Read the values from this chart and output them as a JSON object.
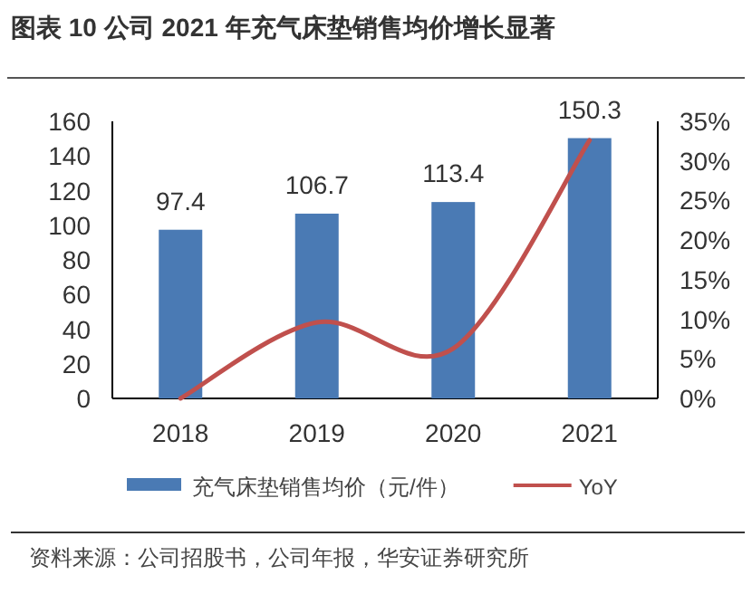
{
  "chart_data": {
    "type": "bar",
    "title": "图表 10 公司 2021 年充气床垫销售均价增长显著",
    "categories": [
      "2018",
      "2019",
      "2020",
      "2021"
    ],
    "series": [
      {
        "name": "充气床垫销售均价（元/件）",
        "color": "#4a7ab4",
        "values": [
          97.4,
          106.7,
          113.4,
          150.3
        ]
      },
      {
        "name": "YoY",
        "type": "line",
        "axis": "y2",
        "color": "#c0504d",
        "values": [
          0,
          9.6,
          6.3,
          32.6
        ]
      }
    ],
    "value_labels": [
      "97.4",
      "106.7",
      "113.4",
      "150.3"
    ],
    "ylim": [
      0,
      160
    ],
    "yticks": [
      0,
      20,
      40,
      60,
      80,
      100,
      120,
      140,
      160
    ],
    "y2lim": [
      0,
      35
    ],
    "y2ticks": [
      {
        "value": 0,
        "label": "0%"
      },
      {
        "value": 5,
        "label": "5%"
      },
      {
        "value": 10,
        "label": "10%"
      },
      {
        "value": 15,
        "label": "15%"
      },
      {
        "value": 20,
        "label": "20%"
      },
      {
        "value": 25,
        "label": "25%"
      },
      {
        "value": 30,
        "label": "30%"
      },
      {
        "value": 35,
        "label": "35%"
      }
    ],
    "legend": "bottom",
    "grid": false,
    "marker": "none",
    "line_style": "solid",
    "annotations": [
      "资料来源：公司招股书，公司年报，华安证券研究所"
    ]
  }
}
